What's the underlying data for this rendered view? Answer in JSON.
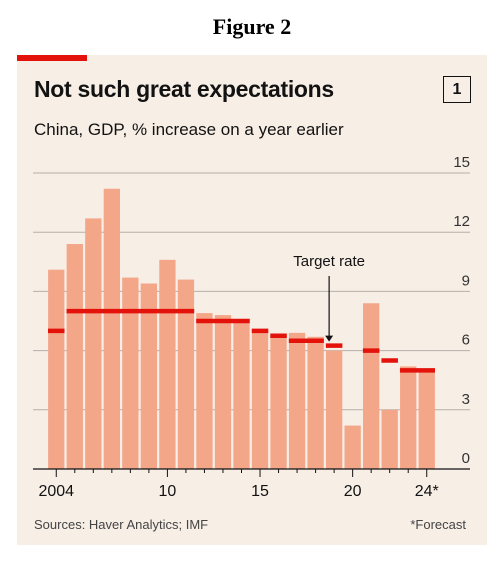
{
  "figure_label": "Figure 2",
  "chart_number": "1",
  "footer": {
    "sources": "Sources: Haver Analytics; IMF",
    "note": "*Forecast"
  },
  "colors": {
    "bar": "#f4a689",
    "target": "#e3120b",
    "background": "#f7eee6",
    "grid": "#b5b0aa"
  },
  "chart_data": {
    "type": "bar",
    "title": "Not such great expectations",
    "subtitle": "China, GDP, % increase on a year earlier",
    "categories": [
      "2004",
      "2005",
      "2006",
      "2007",
      "2008",
      "2009",
      "2010",
      "2011",
      "2012",
      "2013",
      "2014",
      "2015",
      "2016",
      "2017",
      "2018",
      "2019",
      "2020",
      "2021",
      "2022",
      "2023",
      "2024"
    ],
    "series": [
      {
        "name": "GDP growth",
        "values": [
          10.1,
          11.4,
          12.7,
          14.2,
          9.7,
          9.4,
          10.6,
          9.6,
          7.9,
          7.8,
          7.4,
          7.0,
          6.8,
          6.9,
          6.7,
          6.0,
          2.2,
          8.4,
          3.0,
          5.2,
          5.0
        ]
      },
      {
        "name": "Target rate",
        "values": [
          7,
          8,
          8,
          8,
          8,
          8,
          8,
          8,
          7.5,
          7.5,
          7.5,
          7,
          6.75,
          6.5,
          6.5,
          6.25,
          null,
          6,
          5.5,
          5,
          5
        ]
      }
    ],
    "annotation": "Target rate",
    "ylim": [
      0,
      15
    ],
    "yticks": [
      0,
      3,
      6,
      9,
      12,
      15
    ],
    "ytick_labels": [
      "0",
      "3",
      "6",
      "9",
      "12",
      "15"
    ],
    "xtick_labels": [
      {
        "category": "2004",
        "label": "2004"
      },
      {
        "category": "2010",
        "label": "10"
      },
      {
        "category": "2015",
        "label": "15"
      },
      {
        "category": "2020",
        "label": "20"
      },
      {
        "category": "2024",
        "label": "24*"
      }
    ],
    "y_axis_position": "right",
    "grid": true,
    "forecast_categories": [
      "2024"
    ]
  }
}
